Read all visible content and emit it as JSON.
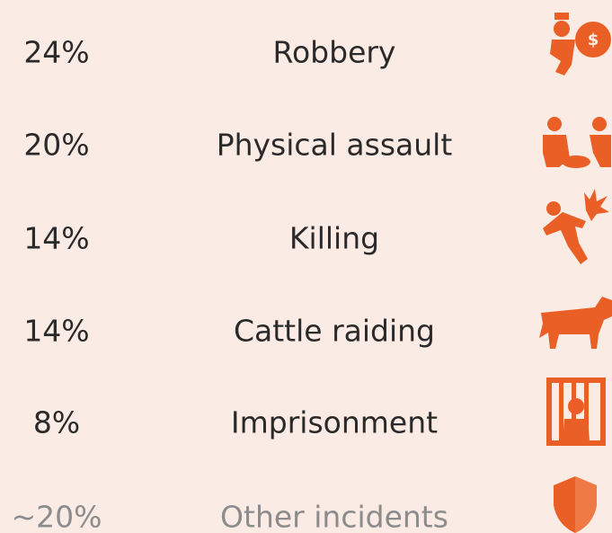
{
  "rows": [
    {
      "share": "24%",
      "label": "Robbery"
    },
    {
      "share": "20%",
      "label": "Physical assault"
    },
    {
      "share": "14%",
      "label": "Killing"
    },
    {
      "share": "14%",
      "label": "Cattle raiding"
    },
    {
      "share": "8%",
      "label": "Imprisonment"
    },
    {
      "share": "~20%",
      "label": "Other incidents"
    }
  ]
}
